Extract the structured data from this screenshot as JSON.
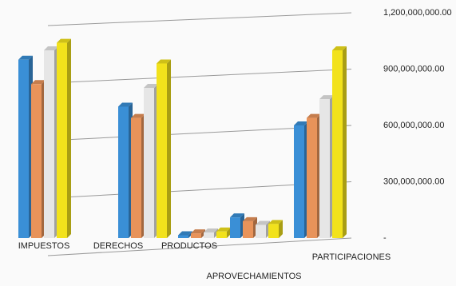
{
  "chart_data": {
    "type": "bar3d",
    "categories": [
      "IMPUESTOS",
      "DERECHOS",
      "PRODUCTOS",
      "APROVECHAMIENTOS",
      "PARTICIPACIONES"
    ],
    "series": [
      {
        "color": "#3a8fd6",
        "values": [
          950000000,
          700000000,
          15000000,
          110000000,
          600000000
        ]
      },
      {
        "color": "#e8935a",
        "values": [
          820000000,
          640000000,
          25000000,
          90000000,
          640000000
        ]
      },
      {
        "color": "#e6e6e6",
        "values": [
          1000000000,
          800000000,
          30000000,
          70000000,
          740000000
        ]
      },
      {
        "color": "#f2e21c",
        "values": [
          1040000000,
          930000000,
          35000000,
          75000000,
          1000000000
        ]
      }
    ],
    "ylim": [
      0,
      1200000000
    ],
    "yticks": [
      {
        "value": 0,
        "label": "-"
      },
      {
        "value": 300000000,
        "label": "300,000,000.00"
      },
      {
        "value": 600000000,
        "label": "600,000,000.00"
      },
      {
        "value": 900000000,
        "label": "900,000,000.00"
      },
      {
        "value": 1200000000,
        "label": "1,200,000,000.00"
      }
    ],
    "grid": true
  }
}
